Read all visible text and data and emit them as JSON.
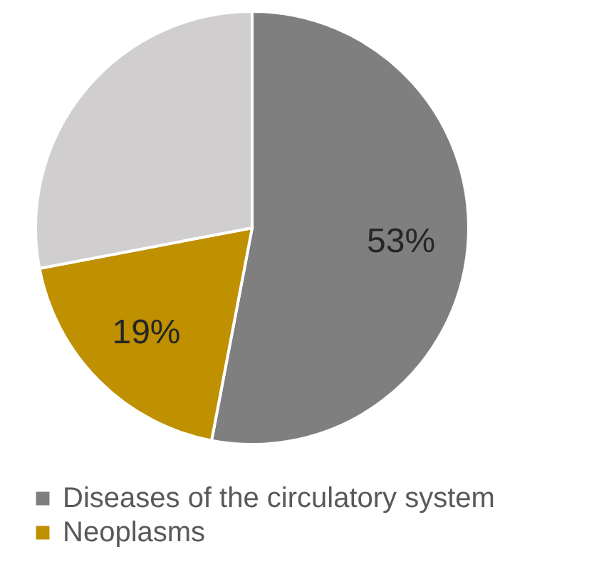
{
  "chart_data": {
    "type": "pie",
    "categories": [
      "Diseases of the circulatory system",
      "Neoplasms",
      null
    ],
    "values": [
      53,
      19,
      28
    ],
    "colors": [
      "#7f7f7f",
      "#bf9000",
      "#d0cece"
    ],
    "value_labels": [
      "53%",
      "19%",
      null
    ],
    "legend": "bottom"
  }
}
